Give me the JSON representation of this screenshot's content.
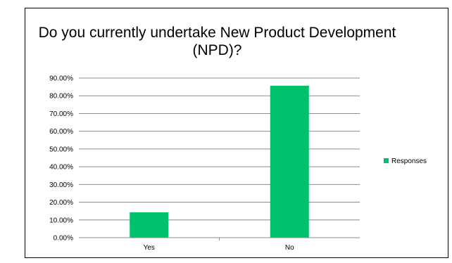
{
  "chart_data": {
    "type": "bar",
    "title": "Do you currently undertake New Product Development (NPD)?",
    "categories": [
      "Yes",
      "No"
    ],
    "series": [
      {
        "name": "Responses",
        "values": [
          14.29,
          85.71
        ],
        "color": "#00c06b"
      }
    ],
    "ylim": [
      0,
      90
    ],
    "yticks": [
      "0.00%",
      "10.00%",
      "20.00%",
      "30.00%",
      "40.00%",
      "50.00%",
      "60.00%",
      "70.00%",
      "80.00%",
      "90.00%"
    ],
    "grid": true,
    "legend": "right",
    "xlabel": "",
    "ylabel": ""
  }
}
